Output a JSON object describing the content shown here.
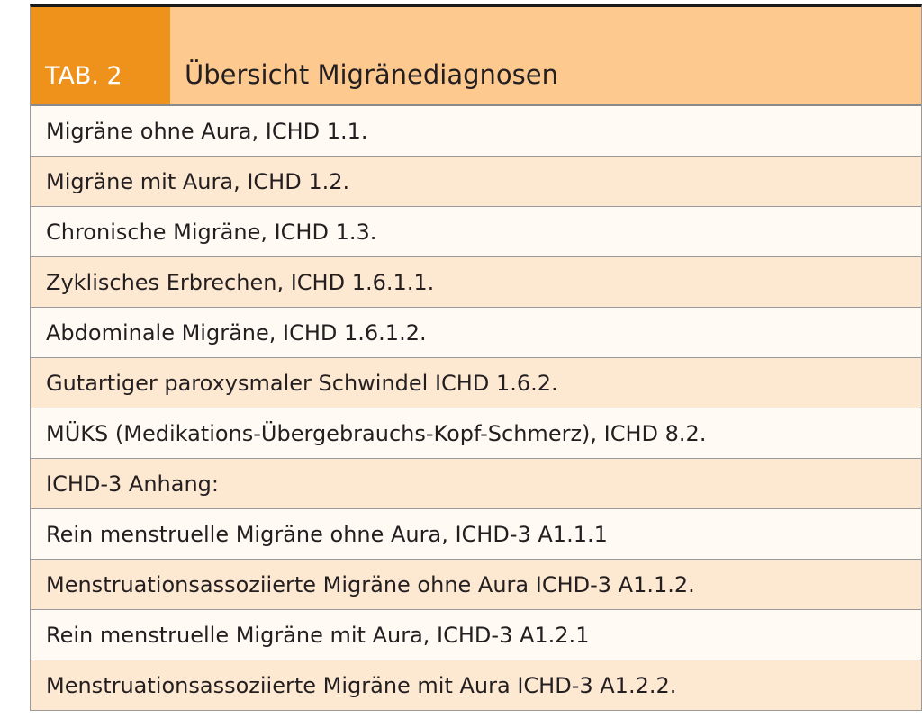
{
  "header": {
    "label": "TAB. 2",
    "title": "Übersicht Migränediagnosen"
  },
  "table": {
    "rows": [
      "Migräne ohne Aura, ICHD 1.1.",
      "Migräne mit Aura, ICHD 1.2.",
      "Chronische Migräne, ICHD 1.3.",
      "Zyklisches Erbrechen, ICHD 1.6.1.1.",
      "Abdominale Migräne, ICHD 1.6.1.2.",
      "Gutartiger paroxysmaler Schwindel ICHD 1.6.2.",
      "MÜKS (Medikations-Übergebrauchs-Kopf-Schmerz), ICHD 8.2.",
      "ICHD-3 Anhang:",
      "Rein menstruelle Migräne ohne Aura, ICHD-3 A1.1.1",
      "Menstruationsassoziierte Migräne ohne Aura ICHD-3 A1.1.2.",
      "Rein menstruelle Migräne mit Aura, ICHD-3 A1.2.1",
      "Menstruationsassoziierte Migräne mit Aura ICHD-3 A1.2.2."
    ]
  }
}
